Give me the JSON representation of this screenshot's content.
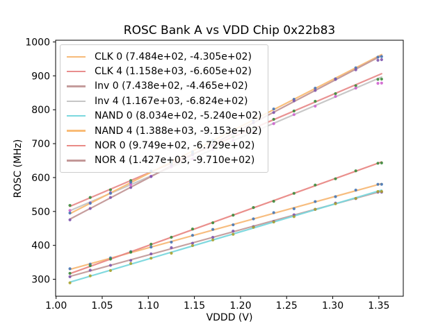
{
  "figure": {
    "title": "ROSC Bank A vs VDD Chip 0x22b83",
    "xlabel": "VDDD (V)",
    "ylabel": "ROSC (MHz)"
  },
  "chart_data": {
    "type": "scatter",
    "title": "ROSC Bank A vs VDD Chip 0x22b83",
    "xlabel": "VDDD (V)",
    "ylabel": "ROSC (MHz)",
    "grid": false,
    "legend_position": "upper left",
    "xlim": [
      0.9995,
      1.3765
    ],
    "ylim": [
      250,
      1005
    ],
    "xticks": {
      "values": [
        1.0,
        1.05,
        1.1,
        1.15,
        1.2,
        1.25,
        1.3,
        1.35
      ],
      "labels": [
        "1.00",
        "1.05",
        "1.10",
        "1.15",
        "1.20",
        "1.25",
        "1.30",
        "1.35"
      ]
    },
    "yticks": {
      "values": [
        300,
        400,
        500,
        600,
        700,
        800,
        900,
        1000
      ],
      "labels": [
        "300",
        "400",
        "500",
        "600",
        "700",
        "800",
        "900",
        "1000"
      ]
    },
    "fit_x_range": [
      1.015,
      1.353
    ],
    "x": [
      1.015,
      1.037,
      1.059,
      1.081,
      1.103,
      1.125,
      1.148,
      1.17,
      1.192,
      1.214,
      1.236,
      1.258,
      1.281,
      1.303,
      1.325,
      1.349,
      1.353
    ],
    "series": [
      {
        "name": "CLK 0",
        "legend_label": "CLK 0 (7.484e+02, -4.305e+02)",
        "fit": {
          "slope": 748.4,
          "intercept": -430.5
        },
        "line_color": "#F7BA79",
        "marker_color": "#4576B5",
        "values": [
          331.1,
          344.6,
          363.1,
          381.5,
          395.0,
          409.5,
          429.7,
          447.1,
          460.6,
          478.1,
          496.5,
          508.0,
          529.2,
          543.7,
          563.1,
          580.1,
          580.1
        ]
      },
      {
        "name": "CLK 4",
        "legend_label": "CLK 4 (1.158e+03, -6.605e+02)",
        "fit": {
          "slope": 1158.0,
          "intercept": -660.5
        },
        "line_color": "#E88E8E",
        "marker_color": "#3C8B3C",
        "values": [
          517.9,
          541.3,
          563.8,
          591.3,
          618.8,
          641.3,
          669.9,
          697.4,
          719.8,
          743.3,
          771.8,
          796.3,
          824.9,
          847.4,
          870.9,
          889.6,
          890.3
        ]
      },
      {
        "name": "Inv 0",
        "legend_label": "Inv 0 (7.438e+02, -4.465e+02)",
        "fit": {
          "slope": 743.8,
          "intercept": -446.5
        },
        "line_color": "#C49C9C",
        "marker_color": "#7E57AE",
        "values": [
          307.5,
          326.8,
          341.2,
          355.5,
          374.9,
          393.3,
          406.4,
          423.7,
          442.1,
          455.5,
          470.8,
          490.2,
          506.3,
          524.7,
          538.0,
          556.9,
          556.9
        ]
      },
      {
        "name": "Inv 4",
        "legend_label": "Inv 4 (1.167e+03, -6.824e+02)",
        "fit": {
          "slope": 1167.0,
          "intercept": -682.4
        },
        "line_color": "#C6C6C6",
        "marker_color": "#CF63CF",
        "values": [
          503.1,
          525.8,
          555.5,
          579.1,
          603.8,
          631.5,
          654.3,
          683.0,
          709.7,
          736.3,
          759.0,
          785.7,
          810.5,
          839.2,
          863.9,
          877.9,
          878.6
        ]
      },
      {
        "name": "NAND 0",
        "legend_label": "NAND 0 (8.034e+02, -5.240e+02)",
        "fit": {
          "slope": 803.4,
          "intercept": -524.0
        },
        "line_color": "#7BD8DE",
        "marker_color": "#ABA32F",
        "values": [
          289.5,
          310.1,
          325.8,
          346.5,
          362.2,
          376.8,
          399.3,
          416.0,
          432.7,
          453.3,
          469.0,
          484.7,
          506.2,
          522.8,
          538.5,
          558.8,
          559.0
        ]
      },
      {
        "name": "NAND 4",
        "legend_label": "NAND 4 (1.388e+03, -9.153e+02)",
        "fit": {
          "slope": 1388.0,
          "intercept": -915.3
        },
        "line_color": "#F9BC76",
        "marker_color": "#4576B5",
        "values": [
          495.5,
          524.1,
          553.6,
          586.1,
          618.7,
          646.2,
          676.1,
          709.7,
          739.2,
          768.7,
          802.3,
          830.8,
          863.7,
          891.3,
          923.8,
          955.1,
          956.7
        ]
      },
      {
        "name": "NOR 0",
        "legend_label": "NOR 0 (9.749e+02, -6.729e+02)",
        "fit": {
          "slope": 974.9,
          "intercept": -672.9
        },
        "line_color": "#E98A86",
        "marker_color": "#3C8B3C",
        "values": [
          317.6,
          340.1,
          359.5,
          380.0,
          403.4,
          423.9,
          448.3,
          466.7,
          489.2,
          511.6,
          530.1,
          553.5,
          578.0,
          596.4,
          619.8,
          642.2,
          643.1
        ]
      },
      {
        "name": "NOR 4",
        "legend_label": "NOR 4 (1.427e+03, -9.710e+02)",
        "fit": {
          "slope": 1427.0,
          "intercept": -971.0
        },
        "line_color": "#C39898",
        "marker_color": "#7E57AE",
        "values": [
          475.4,
          508.8,
          541.2,
          570.6,
          603.0,
          636.4,
          667.2,
          696.6,
          731.0,
          761.4,
          791.8,
          826.2,
          857.0,
          889.4,
          917.8,
          946.0,
          947.7
        ]
      }
    ]
  }
}
